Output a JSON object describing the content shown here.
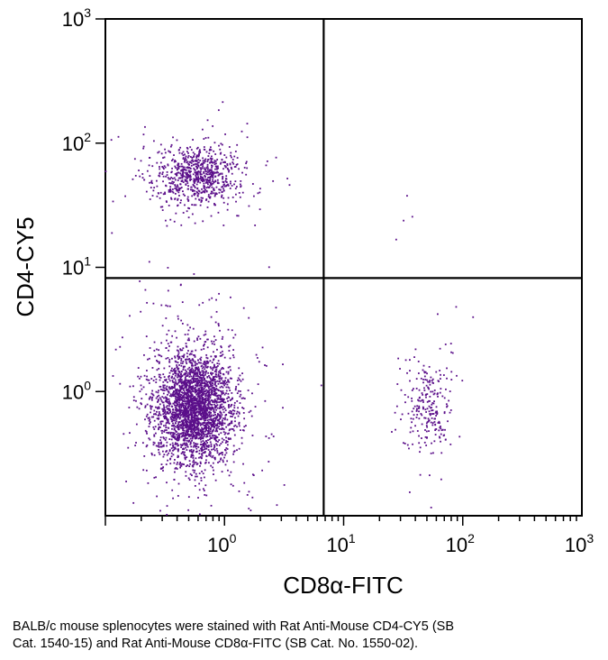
{
  "chart_data": {
    "type": "scatter",
    "xlabel": "CD8α-FITC",
    "ylabel": "CD4-CY5",
    "x_scale": "log",
    "y_scale": "log",
    "xlim": [
      0.1,
      1000
    ],
    "ylim": [
      0.1,
      1000
    ],
    "x_ticks": [
      {
        "base": "10",
        "exp": "0",
        "value": 1
      },
      {
        "base": "10",
        "exp": "1",
        "value": 10
      },
      {
        "base": "10",
        "exp": "2",
        "value": 100
      },
      {
        "base": "10",
        "exp": "3",
        "value": 1000
      }
    ],
    "y_ticks": [
      {
        "base": "10",
        "exp": "0",
        "value": 1
      },
      {
        "base": "10",
        "exp": "1",
        "value": 10
      },
      {
        "base": "10",
        "exp": "2",
        "value": 100
      },
      {
        "base": "10",
        "exp": "3",
        "value": 1000
      }
    ],
    "quadrant_gates": {
      "x": 6.8,
      "y": 8.2
    },
    "populations": [
      {
        "label": "CD4-CD8- (lower-left)",
        "center": [
          0.55,
          0.75
        ],
        "spread_log": [
          0.16,
          0.22
        ],
        "approx_events": 3000
      },
      {
        "label": "CD4+CD8- (upper-left)",
        "center": [
          0.6,
          55
        ],
        "spread_log": [
          0.17,
          0.12
        ],
        "approx_events": 800
      },
      {
        "label": "CD4-CD8+ (lower-right)",
        "center": [
          52,
          0.75
        ],
        "spread_log": [
          0.1,
          0.2
        ],
        "approx_events": 250
      },
      {
        "label": "CD4+CD8+ (upper-right)",
        "center": [
          40,
          22
        ],
        "spread_log": [
          0.15,
          0.1
        ],
        "approx_events": 4
      }
    ],
    "point_color": "#5b0f8a",
    "grid": false
  },
  "caption": {
    "line1": "BALB/c mouse splenocytes were stained with Rat Anti-Mouse CD4-CY5 (SB",
    "line2": "Cat. 1540-15) and Rat Anti-Mouse CD8α-FITC (SB Cat. No. 1550-02)."
  }
}
